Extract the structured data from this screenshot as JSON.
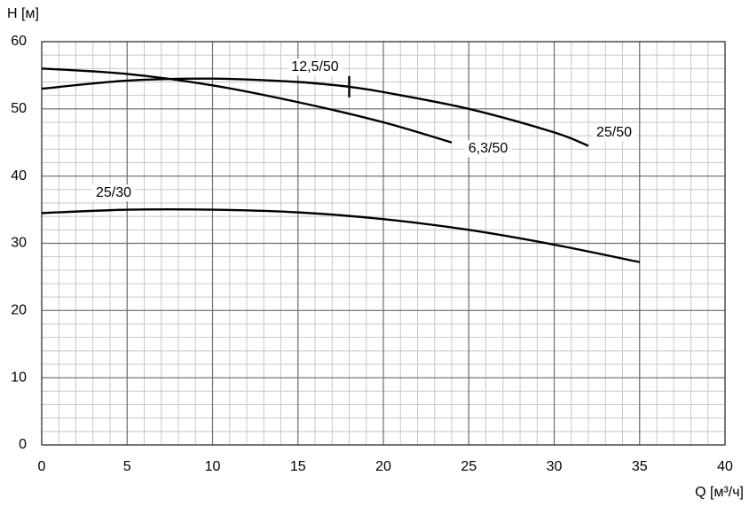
{
  "chart_data": {
    "type": "line",
    "x_label": "Q [м³/ч]",
    "y_label": "H [м]",
    "xlim": [
      0,
      40
    ],
    "ylim": [
      0,
      60
    ],
    "xticks": [
      0,
      5,
      10,
      15,
      20,
      25,
      30,
      35,
      40
    ],
    "yticks": [
      0,
      10,
      20,
      30,
      40,
      50,
      60
    ],
    "grid": true,
    "minor_grid": {
      "x": 1,
      "y": 2
    },
    "series": [
      {
        "name": "6,3/50",
        "color": "#000000",
        "x": [
          0,
          5,
          10,
          15,
          20,
          24
        ],
        "values": [
          56,
          55.2,
          53.5,
          51,
          48,
          45
        ]
      },
      {
        "name": "12,5/50",
        "color": "#000000",
        "x": [
          0,
          5,
          10,
          15,
          18
        ],
        "values": [
          53,
          54.2,
          54.5,
          54,
          53.3
        ]
      },
      {
        "name": "25/50",
        "color": "#000000",
        "x": [
          18,
          20,
          25,
          30,
          32
        ],
        "values": [
          53.3,
          52.5,
          50,
          46.5,
          44.5
        ]
      },
      {
        "name": "25/30",
        "color": "#000000",
        "x": [
          0,
          5,
          10,
          15,
          20,
          25,
          30,
          35
        ],
        "values": [
          34.5,
          35,
          35,
          34.6,
          33.6,
          32,
          29.8,
          27.2
        ]
      }
    ]
  }
}
